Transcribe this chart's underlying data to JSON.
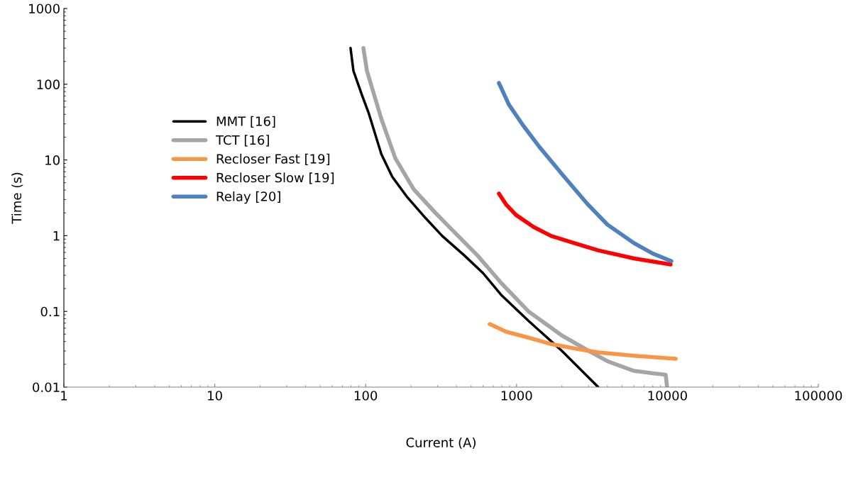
{
  "chart_data": {
    "type": "line",
    "xlabel": "Current (A)",
    "ylabel": "Time (s)",
    "log": "xy",
    "xlim": [
      1,
      100000
    ],
    "ylim": [
      0.01,
      1000
    ],
    "xticks": [
      1,
      10,
      100,
      1000,
      10000,
      100000
    ],
    "yticks": [
      0.01,
      0.1,
      1,
      10,
      100,
      1000
    ],
    "grid": false,
    "legend": "left",
    "marker": "none",
    "line_style": "solid",
    "series": [
      {
        "name": "MMT [16]",
        "color": "#000000",
        "x": [
          79.4,
          83,
          95,
          105,
          127,
          150,
          187,
          250,
          322,
          450,
          600,
          798,
          1200,
          2000,
          3480
        ],
        "values": [
          300,
          150,
          70,
          41,
          12,
          6,
          3.3,
          1.7,
          0.99,
          0.55,
          0.32,
          0.162,
          0.075,
          0.03,
          0.01
        ]
      },
      {
        "name": "TCT [16]",
        "color": "#a5a5a5",
        "x": [
          96.6,
          102,
          127,
          157,
          208,
          290,
          386,
          550,
          798,
          1200,
          2000,
          2930,
          4000,
          5990,
          8000,
          9730,
          9950
        ],
        "values": [
          300,
          150,
          35,
          10.6,
          4.1,
          2,
          1.12,
          0.55,
          0.233,
          0.1,
          0.048,
          0.031,
          0.022,
          0.0164,
          0.0152,
          0.0146,
          0.01
        ]
      },
      {
        "name": "Recloser Fast [19]",
        "color": "#f79646",
        "x": [
          664,
          851,
          1200,
          1700,
          2500,
          3480,
          6000,
          11350
        ],
        "values": [
          0.068,
          0.054,
          0.045,
          0.037,
          0.032,
          0.0288,
          0.026,
          0.0237
        ]
      },
      {
        "name": "Recloser Slow [19]",
        "color": "#ff0000",
        "x": [
          764,
          850,
          991,
          1300,
          1700,
          2500,
          3480,
          6000,
          10500
        ],
        "values": [
          3.6,
          2.6,
          1.88,
          1.3,
          0.99,
          0.78,
          0.64,
          0.5,
          0.417
        ]
      },
      {
        "name": "Relay [20]",
        "color": "#4f81bd",
        "x": [
          764,
          889,
          1100,
          1416,
          2000,
          2930,
          4000,
          5990,
          8000,
          10620
        ],
        "values": [
          104,
          54,
          29,
          14.9,
          6.5,
          2.66,
          1.4,
          0.8,
          0.58,
          0.46
        ]
      }
    ]
  }
}
